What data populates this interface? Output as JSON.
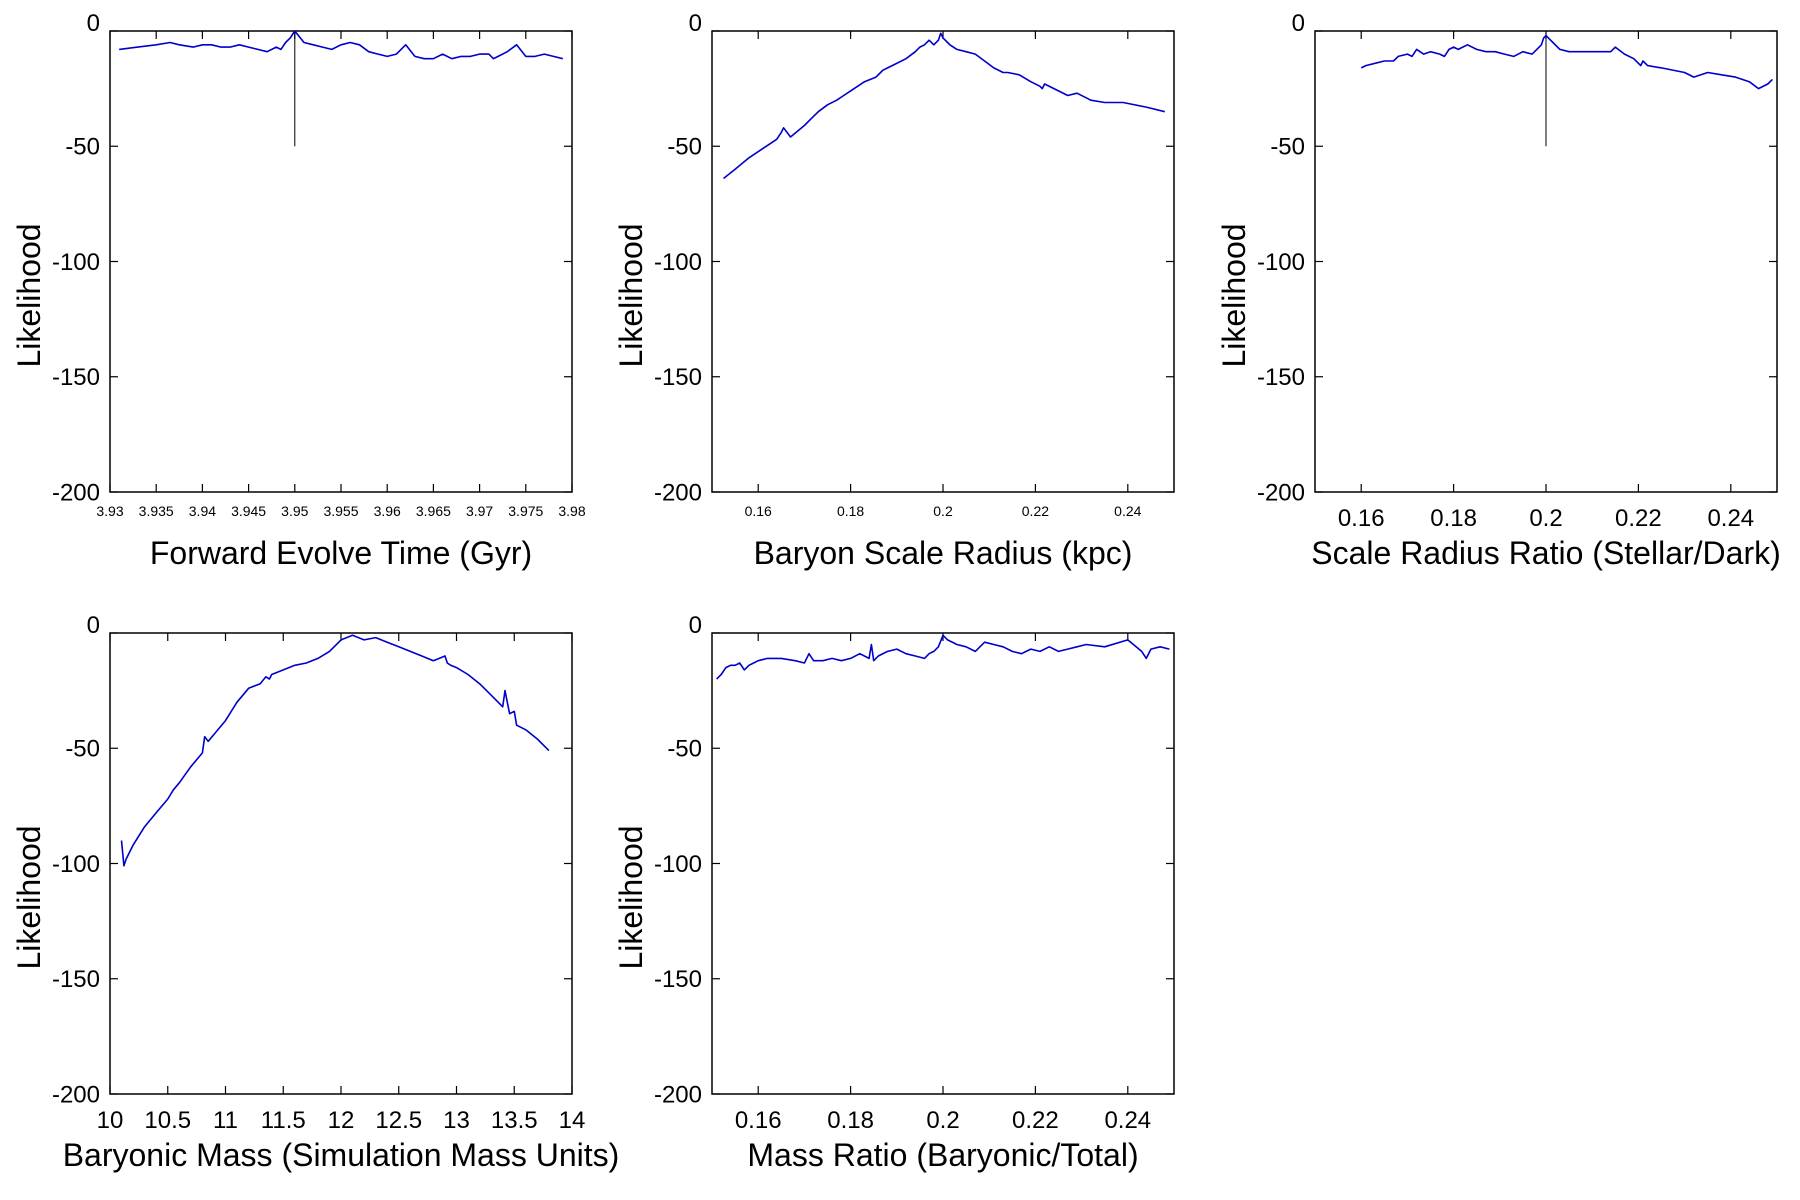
{
  "colors": {
    "line": "#0000cc",
    "axes": "#000000",
    "background": "#ffffff"
  },
  "chart_data": [
    {
      "type": "line",
      "xlabel": "Forward Evolve Time (Gyr)",
      "ylabel": "Likelihood",
      "xlim": [
        3.93,
        3.98
      ],
      "ylim": [
        -200,
        0
      ],
      "xticks": [
        "3.93",
        "3.935",
        "3.94",
        "3.945",
        "3.95",
        "3.955",
        "3.96",
        "3.965",
        "3.97",
        "3.975",
        "3.98"
      ],
      "yticks": [
        "0",
        "-50",
        "-100",
        "-150",
        "-200"
      ],
      "grid": false,
      "marker_line": {
        "x": 3.95,
        "y": [
          -50,
          0
        ]
      },
      "series": [
        {
          "x": [
            3.931,
            3.933,
            3.935,
            3.9365,
            3.9375,
            3.939,
            3.94,
            3.941,
            3.942,
            3.943,
            3.944,
            3.945,
            3.946,
            3.947,
            3.948,
            3.9485,
            3.949,
            3.9495,
            3.95,
            3.951,
            3.952,
            3.953,
            3.954,
            3.955,
            3.956,
            3.957,
            3.958,
            3.959,
            3.96,
            3.961,
            3.962,
            3.963,
            3.964,
            3.965,
            3.966,
            3.967,
            3.968,
            3.969,
            3.97,
            3.971,
            3.9715,
            3.972,
            3.973,
            3.974,
            3.975,
            3.976,
            3.977,
            3.978,
            3.979
          ],
          "y": [
            -8,
            -7,
            -6,
            -5,
            -6,
            -7,
            -6,
            -6,
            -7,
            -7,
            -6,
            -7,
            -8,
            -9,
            -7,
            -8,
            -5,
            -3,
            0,
            -5,
            -6,
            -7,
            -8,
            -6,
            -5,
            -6,
            -9,
            -10,
            -11,
            -10,
            -6,
            -11,
            -12,
            -12,
            -10,
            -12,
            -11,
            -11,
            -10,
            -10,
            -12,
            -11,
            -9,
            -6,
            -11,
            -11,
            -10,
            -11,
            -12
          ]
        }
      ]
    },
    {
      "type": "line",
      "xlabel": "Baryon Scale Radius (kpc)",
      "ylabel": "Likelihood",
      "xlim": [
        0.15,
        0.25
      ],
      "ylim": [
        -200,
        0
      ],
      "xticks": [
        "0.16",
        "0.18",
        "0.2",
        "0.22",
        "0.24"
      ],
      "yticks": [
        "0",
        "-50",
        "-100",
        "-150",
        "-200"
      ],
      "grid": false,
      "series": [
        {
          "x": [
            0.1525,
            0.155,
            0.158,
            0.161,
            0.164,
            0.165,
            0.1655,
            0.167,
            0.17,
            0.1715,
            0.173,
            0.175,
            0.177,
            0.1785,
            0.18,
            0.183,
            0.1855,
            0.1865,
            0.187,
            0.189,
            0.192,
            0.194,
            0.195,
            0.196,
            0.197,
            0.198,
            0.199,
            0.1995,
            0.2,
            0.201,
            0.2015,
            0.203,
            0.205,
            0.207,
            0.209,
            0.211,
            0.213,
            0.214,
            0.2165,
            0.219,
            0.221,
            0.2215,
            0.222,
            0.225,
            0.227,
            0.229,
            0.231,
            0.232,
            0.235,
            0.239,
            0.244,
            0.248
          ],
          "y": [
            -64,
            -60,
            -55,
            -51,
            -47,
            -44,
            -42,
            -46,
            -41,
            -38,
            -35,
            -32,
            -30,
            -28,
            -26,
            -22,
            -20,
            -18,
            -17,
            -15,
            -12,
            -9,
            -7,
            -6,
            -4,
            -6,
            -4,
            -1,
            -3,
            -5,
            -6,
            -8,
            -9,
            -10,
            -13,
            -16,
            -18,
            -18,
            -19,
            -22,
            -24,
            -25,
            -23,
            -26,
            -28,
            -27,
            -29,
            -30,
            -31,
            -31,
            -33,
            -35
          ]
        }
      ]
    },
    {
      "type": "line",
      "xlabel": "Scale Radius Ratio (Stellar/Dark)",
      "ylabel": "Likelihood",
      "xlim": [
        0.15,
        0.25
      ],
      "ylim": [
        -200,
        0
      ],
      "xticks": [
        "0.16",
        "0.18",
        "0.2",
        "0.22",
        "0.24"
      ],
      "yticks": [
        "0",
        "-50",
        "-100",
        "-150",
        "-200"
      ],
      "grid": false,
      "marker_line": {
        "x": 0.2,
        "y": [
          -50,
          0
        ]
      },
      "series": [
        {
          "x": [
            0.16,
            0.161,
            0.163,
            0.165,
            0.167,
            0.168,
            0.17,
            0.171,
            0.172,
            0.1735,
            0.175,
            0.177,
            0.178,
            0.179,
            0.18,
            0.181,
            0.183,
            0.185,
            0.187,
            0.189,
            0.191,
            0.193,
            0.195,
            0.197,
            0.198,
            0.199,
            0.1995,
            0.2,
            0.201,
            0.2015,
            0.203,
            0.205,
            0.21,
            0.214,
            0.215,
            0.217,
            0.219,
            0.2205,
            0.221,
            0.222,
            0.225,
            0.23,
            0.232,
            0.235,
            0.238,
            0.241,
            0.244,
            0.246,
            0.248,
            0.249
          ],
          "y": [
            -16,
            -15,
            -14,
            -13,
            -13,
            -11,
            -10,
            -11,
            -8,
            -10,
            -9,
            -10,
            -11,
            -8,
            -7,
            -8,
            -6,
            -8,
            -9,
            -9,
            -10,
            -11,
            -9,
            -10,
            -8,
            -6,
            -3,
            -2,
            -4,
            -5,
            -8,
            -9,
            -9,
            -9,
            -7,
            -10,
            -12,
            -15,
            -13,
            -15,
            -16,
            -18,
            -20,
            -18,
            -19,
            -20,
            -22,
            -25,
            -23,
            -21
          ]
        }
      ]
    },
    {
      "type": "line",
      "xlabel": "Baryonic Mass (Simulation Mass Units)",
      "ylabel": "Likelihood",
      "xlim": [
        10,
        14
      ],
      "ylim": [
        -200,
        0
      ],
      "xticks": [
        "10",
        "10.5",
        "11",
        "11.5",
        "12",
        "12.5",
        "13",
        "13.5",
        "14"
      ],
      "yticks": [
        "0",
        "-50",
        "-100",
        "-150",
        "-200"
      ],
      "grid": false,
      "series": [
        {
          "x": [
            10.1,
            10.12,
            10.14,
            10.2,
            10.25,
            10.3,
            10.4,
            10.5,
            10.55,
            10.6,
            10.7,
            10.8,
            10.82,
            10.85,
            10.9,
            11.0,
            11.1,
            11.2,
            11.3,
            11.35,
            11.38,
            11.4,
            11.5,
            11.6,
            11.7,
            11.8,
            11.9,
            12.0,
            12.1,
            12.2,
            12.3,
            12.4,
            12.5,
            12.6,
            12.7,
            12.75,
            12.8,
            12.9,
            12.92,
            12.95,
            13.0,
            13.1,
            13.2,
            13.3,
            13.4,
            13.42,
            13.44,
            13.46,
            13.5,
            13.52,
            13.6,
            13.7,
            13.8
          ],
          "y": [
            -90,
            -101,
            -98,
            -92,
            -88,
            -84,
            -78,
            -72,
            -68,
            -65,
            -58,
            -52,
            -45,
            -47,
            -44,
            -38,
            -30,
            -24,
            -22,
            -19,
            -20,
            -18,
            -16,
            -14,
            -13,
            -11,
            -8,
            -3,
            -1,
            -3,
            -2,
            -4,
            -6,
            -8,
            -10,
            -11,
            -12,
            -10,
            -13,
            -14,
            -15,
            -18,
            -22,
            -27,
            -32,
            -25,
            -30,
            -35,
            -34,
            -40,
            -42,
            -46,
            -51
          ]
        }
      ]
    },
    {
      "type": "line",
      "xlabel": "Mass Ratio (Baryonic/Total)",
      "ylabel": "Likelihood",
      "xlim": [
        0.15,
        0.25
      ],
      "ylim": [
        -200,
        0
      ],
      "xticks": [
        "0.16",
        "0.18",
        "0.2",
        "0.22",
        "0.24"
      ],
      "yticks": [
        "0",
        "-50",
        "-100",
        "-150",
        "-200"
      ],
      "grid": false,
      "series": [
        {
          "x": [
            0.151,
            0.152,
            0.153,
            0.154,
            0.155,
            0.156,
            0.157,
            0.158,
            0.159,
            0.16,
            0.162,
            0.165,
            0.168,
            0.17,
            0.171,
            0.172,
            0.174,
            0.176,
            0.178,
            0.18,
            0.182,
            0.184,
            0.1845,
            0.185,
            0.186,
            0.188,
            0.19,
            0.192,
            0.194,
            0.196,
            0.197,
            0.198,
            0.199,
            0.2,
            0.201,
            0.203,
            0.205,
            0.207,
            0.209,
            0.211,
            0.213,
            0.215,
            0.217,
            0.219,
            0.221,
            0.223,
            0.225,
            0.227,
            0.229,
            0.231,
            0.235,
            0.24,
            0.243,
            0.244,
            0.245,
            0.247,
            0.249
          ],
          "y": [
            -20,
            -18,
            -15,
            -14,
            -14,
            -13,
            -16,
            -14,
            -13,
            -12,
            -11,
            -11,
            -12,
            -13,
            -9,
            -12,
            -12,
            -11,
            -12,
            -11,
            -9,
            -11,
            -5,
            -12,
            -10,
            -8,
            -7,
            -9,
            -10,
            -11,
            -9,
            -8,
            -6,
            -1,
            -3,
            -5,
            -6,
            -8,
            -4,
            -5,
            -6,
            -8,
            -9,
            -7,
            -8,
            -6,
            -8,
            -7,
            -6,
            -5,
            -6,
            -3,
            -8,
            -11,
            -7,
            -6,
            -7
          ]
        }
      ]
    }
  ]
}
